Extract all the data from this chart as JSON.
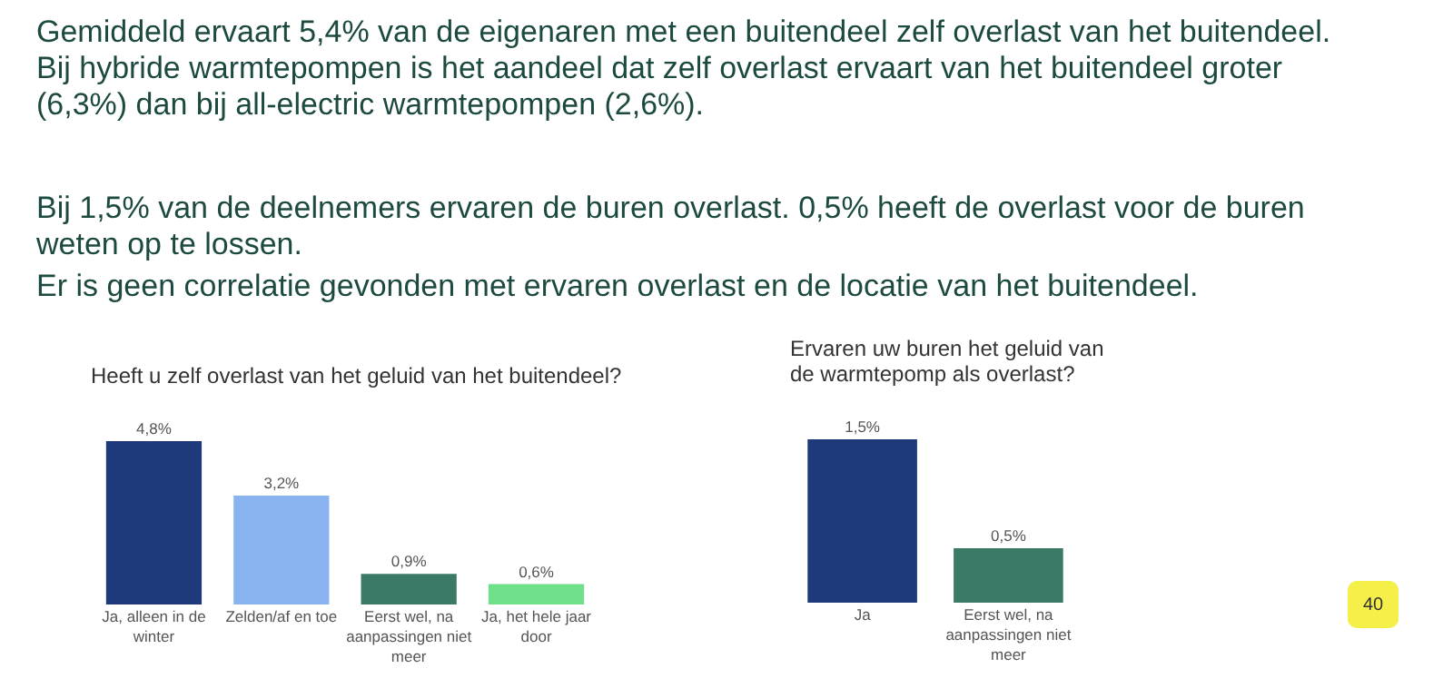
{
  "chart_data": [
    {
      "type": "other",
      "annotations": [
        "Gemiddeld ervaart 5,4% van de eigenaren met een buitendeel zelf overlast van het buitendeel. Bij hybride warmtepompen is het aandeel dat zelf overlast ervaart van het buitendeel groter (6,3%) dan bij all-electric warmtepompen (2,6%).",
        "Bij 1,5% van de deelnemers ervaren de buren overlast. 0,5% heeft de overlast voor de buren weten op te lossen.",
        "Er is geen correlatie gevonden met ervaren overlast en de locatie van het buitendeel.",
        "40"
      ]
    },
    {
      "type": "bar",
      "title": "Heeft u zelf overlast van het geluid van het buitendeel?",
      "categories": [
        "Ja, alleen in de winter",
        "Zelden/af en toe",
        "Eerst wel, na aanpassingen niet meer",
        "Ja, het hele jaar door"
      ],
      "values": [
        4.8,
        3.2,
        0.9,
        0.6
      ],
      "value_labels": [
        "4,8%",
        "3,2%",
        "0,9%",
        "0,6%"
      ],
      "colors": [
        "#1f3a7a",
        "#8ab4f0",
        "#3a7a66",
        "#6ee08a"
      ]
    },
    {
      "type": "bar",
      "title": "Ervaren uw buren het geluid van de warmtepomp als overlast?",
      "categories": [
        "Ja",
        "Eerst wel, na aanpassingen niet meer"
      ],
      "values": [
        1.5,
        0.5
      ],
      "value_labels": [
        "1,5%",
        "0,5%"
      ],
      "colors": [
        "#1f3a7a",
        "#3a7a66"
      ]
    }
  ]
}
